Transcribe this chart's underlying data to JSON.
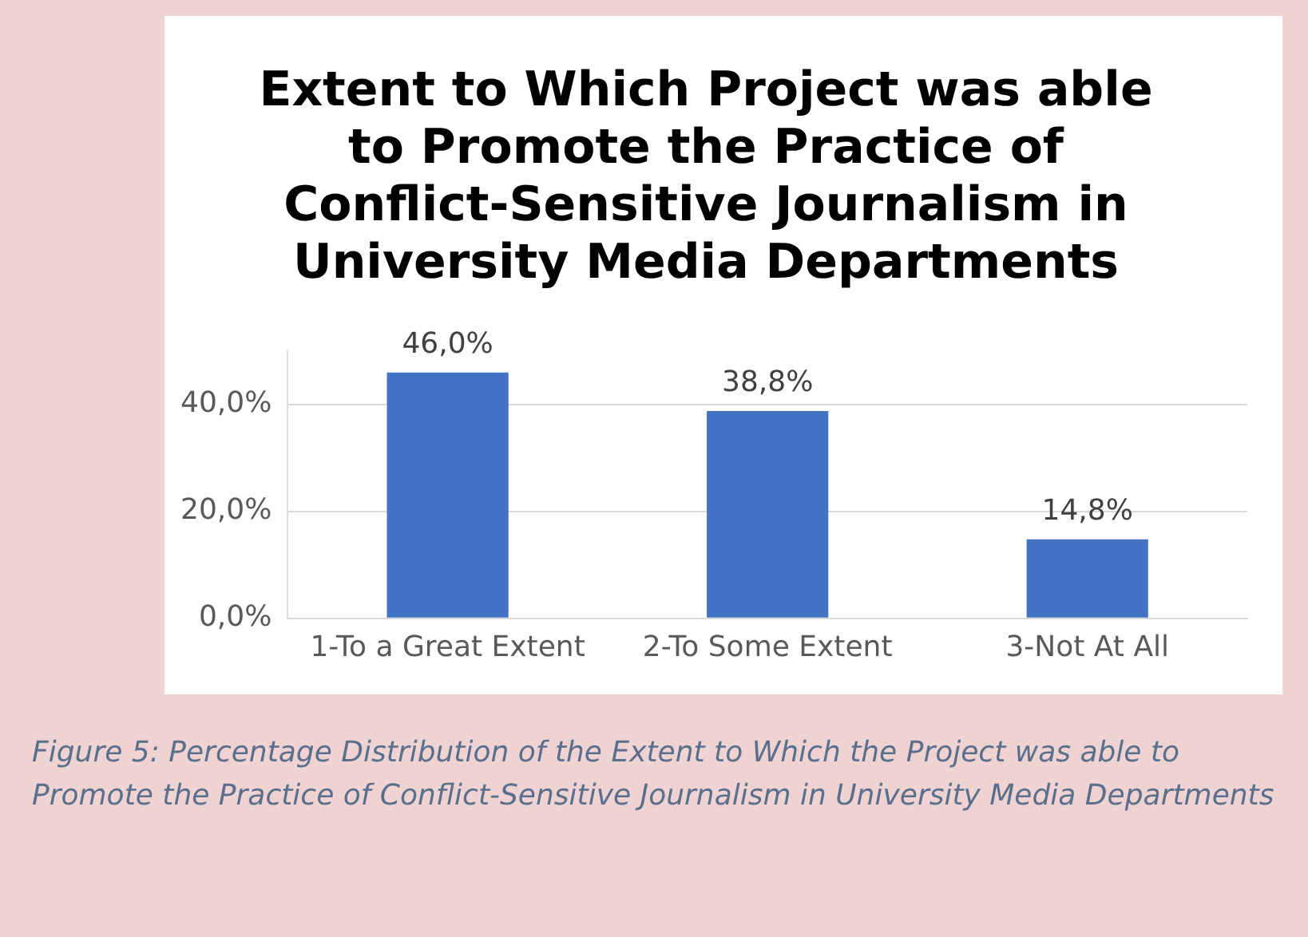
{
  "chart_data": {
    "type": "bar",
    "title": "Extent to Which Project was able to Promote the Practice of Conflict-Sensitive Journalism in University Media Departments",
    "categories": [
      "1-To a Great Extent",
      "2-To Some Extent",
      "3-Not At All"
    ],
    "values": [
      46.0,
      38.8,
      14.8
    ],
    "value_labels": [
      "46,0%",
      "38,8%",
      "14,8%"
    ],
    "color": "#4472c4",
    "ylim": [
      0,
      50
    ],
    "yticks": [
      {
        "value": 0,
        "label": "0,0%"
      },
      {
        "value": 20,
        "label": "20,0%"
      },
      {
        "value": 40,
        "label": "40,0%"
      }
    ],
    "grid": "y",
    "annotations": [
      "Figure 5: Percentage Distribution of the Extent to Which the Project was able to Promote the Practice of Conflict-Sensitive Journalism in University Media Departments"
    ]
  }
}
